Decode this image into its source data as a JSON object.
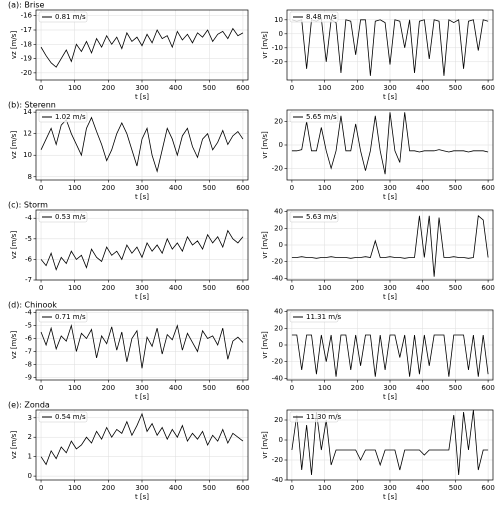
{
  "chart_data": [
    {
      "type": "line",
      "title": "(a): Brise",
      "xlabel": "t [s]",
      "ylabel": "vz [m/s]",
      "legend": "upper left",
      "grid": true,
      "xlim": [
        -15,
        615
      ],
      "xticks": [
        0,
        100,
        200,
        300,
        400,
        500,
        600
      ],
      "ylim": [
        -20.5,
        -15.6
      ],
      "yticks": [
        -20,
        -19,
        -18,
        -17,
        -16
      ],
      "x": [
        0,
        15,
        30,
        45,
        60,
        75,
        90,
        105,
        120,
        135,
        150,
        165,
        180,
        195,
        210,
        225,
        240,
        255,
        270,
        285,
        300,
        315,
        330,
        345,
        360,
        375,
        390,
        405,
        420,
        435,
        450,
        465,
        480,
        495,
        510,
        525,
        540,
        555,
        570,
        585,
        600
      ],
      "series": [
        {
          "name": "0.81 m/s",
          "color": "#000000",
          "values": [
            -18.2,
            -18.8,
            -19.3,
            -19.6,
            -19.0,
            -18.4,
            -19.2,
            -18.0,
            -18.5,
            -17.8,
            -18.6,
            -17.6,
            -18.2,
            -17.4,
            -18.0,
            -17.5,
            -18.3,
            -17.2,
            -17.8,
            -17.5,
            -18.1,
            -17.3,
            -17.9,
            -17.0,
            -17.6,
            -17.4,
            -18.2,
            -17.1,
            -17.7,
            -17.3,
            -17.9,
            -17.2,
            -17.5,
            -17.0,
            -17.8,
            -17.3,
            -17.1,
            -17.6,
            -16.9,
            -17.4,
            -17.2
          ]
        }
      ]
    },
    {
      "type": "line",
      "xlabel": "t [s]",
      "ylabel": "vr [m/s]",
      "legend": "upper left",
      "grid": true,
      "xlim": [
        -15,
        615
      ],
      "xticks": [
        0,
        100,
        200,
        300,
        400,
        500,
        600
      ],
      "ylim": [
        -33,
        17
      ],
      "yticks": [
        -20,
        -10,
        0,
        10
      ],
      "x": [
        0,
        15,
        30,
        45,
        60,
        75,
        90,
        105,
        120,
        135,
        150,
        165,
        180,
        195,
        210,
        225,
        240,
        255,
        270,
        285,
        300,
        315,
        330,
        345,
        360,
        375,
        390,
        405,
        420,
        435,
        450,
        465,
        480,
        495,
        510,
        525,
        540,
        555,
        570,
        585,
        600
      ],
      "series": [
        {
          "name": "8.48 m/s",
          "color": "#000000",
          "values": [
            10,
            9,
            10,
            -25,
            10,
            9,
            11,
            -20,
            10,
            8,
            -28,
            10,
            9,
            -15,
            10,
            10,
            -30,
            9,
            10,
            8,
            -22,
            10,
            9,
            -10,
            10,
            -28,
            9,
            10,
            -18,
            10,
            9,
            -30,
            10,
            8,
            10,
            -25,
            9,
            10,
            -12,
            10,
            9
          ]
        }
      ]
    },
    {
      "type": "line",
      "title": "(b): Sterenn",
      "xlabel": "t [s]",
      "ylabel": "vz [m/s]",
      "legend": "upper left",
      "grid": true,
      "xlim": [
        -15,
        615
      ],
      "xticks": [
        0,
        100,
        200,
        300,
        400,
        500,
        600
      ],
      "ylim": [
        7.7,
        14.2
      ],
      "yticks": [
        8,
        10,
        12,
        14
      ],
      "x": [
        0,
        15,
        30,
        45,
        60,
        75,
        90,
        105,
        120,
        135,
        150,
        165,
        180,
        195,
        210,
        225,
        240,
        255,
        270,
        285,
        300,
        315,
        330,
        345,
        360,
        375,
        390,
        405,
        420,
        435,
        450,
        465,
        480,
        495,
        510,
        525,
        540,
        555,
        570,
        585,
        600
      ],
      "series": [
        {
          "name": "1.02 m/s",
          "color": "#000000",
          "values": [
            10.5,
            11.5,
            12.5,
            11.0,
            12.8,
            13.3,
            12.0,
            11.0,
            10.0,
            12.5,
            13.5,
            12.2,
            11.0,
            9.5,
            10.5,
            12.0,
            13.0,
            12.0,
            10.5,
            9.0,
            11.5,
            12.5,
            10.0,
            8.5,
            10.5,
            12.5,
            11.5,
            10.0,
            11.8,
            12.5,
            10.8,
            9.8,
            11.5,
            12.0,
            10.5,
            11.2,
            12.3,
            11.0,
            11.8,
            12.2,
            11.5
          ]
        }
      ]
    },
    {
      "type": "line",
      "xlabel": "t [s]",
      "ylabel": "vr [m/s]",
      "legend": "upper left",
      "grid": true,
      "xlim": [
        -15,
        615
      ],
      "xticks": [
        0,
        100,
        200,
        300,
        400,
        500,
        600
      ],
      "ylim": [
        -30,
        30
      ],
      "yticks": [
        -20,
        0,
        20
      ],
      "x": [
        0,
        15,
        30,
        45,
        60,
        75,
        90,
        105,
        120,
        135,
        150,
        165,
        180,
        195,
        210,
        225,
        240,
        255,
        270,
        285,
        300,
        315,
        330,
        345,
        360,
        375,
        390,
        405,
        420,
        435,
        450,
        465,
        480,
        495,
        510,
        525,
        540,
        555,
        570,
        585,
        600
      ],
      "series": [
        {
          "name": "5.65 m/s",
          "color": "#000000",
          "values": [
            -5,
            -5,
            -4,
            20,
            -5,
            -5,
            15,
            -5,
            -20,
            -5,
            25,
            -5,
            -5,
            18,
            -5,
            -22,
            -5,
            25,
            -5,
            -25,
            28,
            -5,
            -15,
            28,
            -5,
            -5,
            -6,
            -5,
            -5,
            -5,
            -4,
            -5,
            -6,
            -5,
            -5,
            -5,
            -6,
            -5,
            -5,
            -5,
            -6
          ]
        }
      ]
    },
    {
      "type": "line",
      "title": "(c): Storm",
      "xlabel": "t [s]",
      "ylabel": "vz [m/s]",
      "legend": "upper left",
      "grid": true,
      "xlim": [
        -15,
        615
      ],
      "xticks": [
        0,
        100,
        200,
        300,
        400,
        500,
        600
      ],
      "ylim": [
        -7,
        -3.6
      ],
      "yticks": [
        -7,
        -6,
        -5,
        -4
      ],
      "x": [
        0,
        15,
        30,
        45,
        60,
        75,
        90,
        105,
        120,
        135,
        150,
        165,
        180,
        195,
        210,
        225,
        240,
        255,
        270,
        285,
        300,
        315,
        330,
        345,
        360,
        375,
        390,
        405,
        420,
        435,
        450,
        465,
        480,
        495,
        510,
        525,
        540,
        555,
        570,
        585,
        600
      ],
      "series": [
        {
          "name": "0.53 m/s",
          "color": "#000000",
          "values": [
            -6.0,
            -6.3,
            -5.7,
            -6.5,
            -5.9,
            -6.2,
            -5.6,
            -6.0,
            -5.8,
            -6.4,
            -5.5,
            -5.9,
            -6.1,
            -5.4,
            -5.8,
            -5.6,
            -6.0,
            -5.3,
            -5.7,
            -5.4,
            -5.9,
            -5.2,
            -5.6,
            -5.3,
            -5.7,
            -5.0,
            -5.5,
            -5.2,
            -5.6,
            -4.9,
            -5.3,
            -5.1,
            -5.5,
            -4.8,
            -5.2,
            -4.9,
            -5.4,
            -4.6,
            -5.0,
            -5.2,
            -4.9
          ]
        }
      ]
    },
    {
      "type": "line",
      "xlabel": "t [s]",
      "ylabel": "vr [m/s]",
      "legend": "upper left",
      "grid": true,
      "xlim": [
        -15,
        615
      ],
      "xticks": [
        0,
        100,
        200,
        300,
        400,
        500,
        600
      ],
      "ylim": [
        -42,
        42
      ],
      "yticks": [
        -40,
        -20,
        0,
        20,
        40
      ],
      "x": [
        0,
        15,
        30,
        45,
        60,
        75,
        90,
        105,
        120,
        135,
        150,
        165,
        180,
        195,
        210,
        225,
        240,
        255,
        270,
        285,
        300,
        315,
        330,
        345,
        360,
        375,
        390,
        405,
        420,
        435,
        450,
        465,
        480,
        495,
        510,
        525,
        540,
        555,
        570,
        585,
        600
      ],
      "series": [
        {
          "name": "5.63 m/s",
          "color": "#000000",
          "values": [
            -15,
            -15,
            -14,
            -15,
            -15,
            -16,
            -15,
            -15,
            -14,
            -15,
            -15,
            -15,
            -16,
            -15,
            -15,
            -14,
            -15,
            5,
            -15,
            -15,
            -14,
            -15,
            -15,
            -16,
            -15,
            -15,
            35,
            -15,
            35,
            -38,
            33,
            -15,
            -15,
            -14,
            -15,
            -15,
            -16,
            -15,
            35,
            30,
            -15
          ]
        }
      ]
    },
    {
      "type": "line",
      "title": "(d): Chinook",
      "xlabel": "t [s]",
      "ylabel": "vz [m/s]",
      "legend": "upper left",
      "grid": true,
      "xlim": [
        -15,
        615
      ],
      "xticks": [
        0,
        100,
        200,
        300,
        400,
        500,
        600
      ],
      "ylim": [
        -9.2,
        -3.8
      ],
      "yticks": [
        -9,
        -8,
        -7,
        -6,
        -5,
        -4
      ],
      "x": [
        0,
        15,
        30,
        45,
        60,
        75,
        90,
        105,
        120,
        135,
        150,
        165,
        180,
        195,
        210,
        225,
        240,
        255,
        270,
        285,
        300,
        315,
        330,
        345,
        360,
        375,
        390,
        405,
        420,
        435,
        450,
        465,
        480,
        495,
        510,
        525,
        540,
        555,
        570,
        585,
        600
      ],
      "series": [
        {
          "name": "0.71 m/s",
          "color": "#000000",
          "values": [
            -5.5,
            -6.5,
            -5.2,
            -6.8,
            -5.8,
            -6.2,
            -5.0,
            -7.0,
            -5.6,
            -6.0,
            -5.3,
            -7.5,
            -5.8,
            -6.4,
            -5.1,
            -6.9,
            -5.5,
            -7.8,
            -6.0,
            -5.4,
            -8.3,
            -5.9,
            -6.6,
            -5.2,
            -7.2,
            -5.7,
            -6.1,
            -5.0,
            -6.9,
            -5.6,
            -6.3,
            -7.0,
            -5.4,
            -6.0,
            -5.8,
            -6.5,
            -5.2,
            -7.6,
            -6.2,
            -5.9,
            -6.3
          ]
        }
      ]
    },
    {
      "type": "line",
      "xlabel": "t [s]",
      "ylabel": "vr [m/s]",
      "legend": "upper left",
      "grid": true,
      "xlim": [
        -15,
        615
      ],
      "xticks": [
        0,
        100,
        200,
        300,
        400,
        500,
        600
      ],
      "ylim": [
        -42,
        42
      ],
      "yticks": [
        -40,
        -20,
        0,
        20,
        40
      ],
      "x": [
        0,
        15,
        30,
        45,
        60,
        75,
        90,
        105,
        120,
        135,
        150,
        165,
        180,
        195,
        210,
        225,
        240,
        255,
        270,
        285,
        300,
        315,
        330,
        345,
        360,
        375,
        390,
        405,
        420,
        435,
        450,
        465,
        480,
        495,
        510,
        525,
        540,
        555,
        570,
        585,
        600
      ],
      "series": [
        {
          "name": "11.31 m/s",
          "color": "#000000",
          "values": [
            12,
            12,
            -30,
            12,
            12,
            -35,
            12,
            -20,
            12,
            -38,
            12,
            12,
            -30,
            12,
            -25,
            12,
            12,
            -38,
            12,
            -30,
            12,
            12,
            -15,
            12,
            -38,
            12,
            -35,
            12,
            -25,
            12,
            12,
            12,
            -38,
            12,
            12,
            12,
            -30,
            12,
            -38,
            12,
            -35
          ]
        }
      ]
    },
    {
      "type": "line",
      "title": "(e): Zonda",
      "xlabel": "t [s]",
      "ylabel": "vz [m/s]",
      "legend": "upper left",
      "grid": true,
      "xlim": [
        -15,
        615
      ],
      "xticks": [
        0,
        100,
        200,
        300,
        400,
        500,
        600
      ],
      "ylim": [
        -0.2,
        3.4
      ],
      "yticks": [
        0,
        1,
        2,
        3
      ],
      "x": [
        0,
        15,
        30,
        45,
        60,
        75,
        90,
        105,
        120,
        135,
        150,
        165,
        180,
        195,
        210,
        225,
        240,
        255,
        270,
        285,
        300,
        315,
        330,
        345,
        360,
        375,
        390,
        405,
        420,
        435,
        450,
        465,
        480,
        495,
        510,
        525,
        540,
        555,
        570,
        585,
        600
      ],
      "series": [
        {
          "name": "0.54 m/s",
          "color": "#000000",
          "values": [
            1.0,
            0.6,
            1.3,
            0.9,
            1.5,
            1.2,
            1.8,
            1.4,
            1.6,
            2.0,
            1.7,
            2.3,
            1.9,
            2.5,
            2.0,
            2.4,
            2.2,
            2.8,
            2.1,
            2.6,
            3.2,
            2.3,
            2.7,
            2.1,
            2.5,
            1.9,
            2.4,
            2.0,
            2.6,
            1.8,
            2.2,
            1.9,
            2.3,
            1.6,
            2.1,
            1.8,
            2.4,
            1.7,
            2.2,
            2.0,
            1.8
          ]
        }
      ]
    },
    {
      "type": "line",
      "xlabel": "t [s]",
      "ylabel": "vr [m/s]",
      "legend": "upper left",
      "grid": true,
      "xlim": [
        -15,
        615
      ],
      "xticks": [
        0,
        100,
        200,
        300,
        400,
        500,
        600
      ],
      "ylim": [
        -40,
        30
      ],
      "yticks": [
        -40,
        -20,
        0,
        20
      ],
      "x": [
        0,
        15,
        30,
        45,
        60,
        75,
        90,
        105,
        120,
        135,
        150,
        165,
        180,
        195,
        210,
        225,
        240,
        255,
        270,
        285,
        300,
        315,
        330,
        345,
        360,
        375,
        390,
        405,
        420,
        435,
        450,
        465,
        480,
        495,
        510,
        525,
        540,
        555,
        570,
        585,
        600
      ],
      "series": [
        {
          "name": "11.30 m/s",
          "color": "#000000",
          "values": [
            -10,
            25,
            -30,
            15,
            -35,
            28,
            -10,
            20,
            -25,
            -10,
            -10,
            -10,
            -10,
            -10,
            -20,
            -10,
            -10,
            -10,
            -25,
            -10,
            -10,
            -10,
            -30,
            -10,
            -10,
            -10,
            -10,
            -15,
            -10,
            -10,
            -10,
            -10,
            -10,
            25,
            -35,
            28,
            -10,
            30,
            -30,
            -10,
            -10
          ]
        }
      ]
    }
  ]
}
